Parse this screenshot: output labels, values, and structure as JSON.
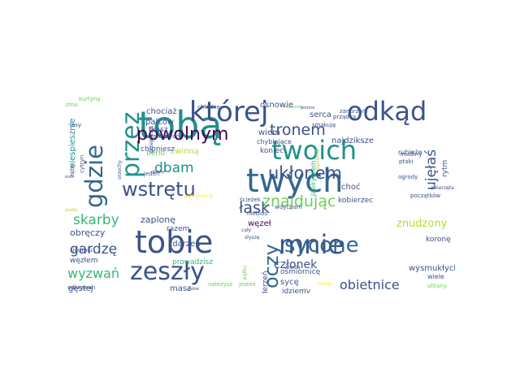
{
  "palette": {
    "background": "#ffffff",
    "dark_purple": "#440154",
    "indigo": "#3b528b",
    "blue": "#31688e",
    "teal": "#21918c",
    "green": "#35b779",
    "light_green": "#6ece58",
    "lime": "#b5de2b",
    "yellow": "#fde725"
  },
  "words": [
    {
      "text": "tobą",
      "c": "#21918c"
    },
    {
      "text": "twych",
      "c": "#31688e"
    },
    {
      "text": "tobie",
      "c": "#3b528b"
    },
    {
      "text": "której",
      "c": "#3b528b"
    },
    {
      "text": "odkąd",
      "c": "#3b528b"
    },
    {
      "text": "twoich",
      "c": "#21918c"
    },
    {
      "text": "gdzie",
      "c": "#31688e"
    },
    {
      "text": "przez",
      "c": "#21918c"
    },
    {
      "text": "mnie",
      "c": "#3b528b"
    },
    {
      "text": "zeszły",
      "c": "#3b528b"
    },
    {
      "text": "wstrętu",
      "c": "#3b528b"
    },
    {
      "text": "sycone",
      "c": "#31688e"
    },
    {
      "text": "powolnym",
      "c": "#440154"
    },
    {
      "text": "ukłonem",
      "c": "#3b528b"
    },
    {
      "text": "tronem",
      "c": "#3b528b"
    },
    {
      "text": "oczy",
      "c": "#31688e"
    },
    {
      "text": "znajdując",
      "c": "#6ece58"
    },
    {
      "text": "skarby",
      "c": "#35b779"
    },
    {
      "text": "łask",
      "c": "#3b528b"
    },
    {
      "text": "dbam",
      "c": "#21918c"
    },
    {
      "text": "ujęłaś",
      "c": "#3b528b"
    },
    {
      "text": "gardzę",
      "c": "#3b528b"
    },
    {
      "text": "wyzwań",
      "c": "#35b779"
    },
    {
      "text": "obietnice",
      "c": "#3b528b"
    },
    {
      "text": "członek",
      "c": "#3b528b"
    },
    {
      "text": "znudzony",
      "c": "#b5de2b"
    },
    {
      "text": "zaplonę",
      "c": "#3b528b"
    },
    {
      "text": "obręczy",
      "c": "#3b528b"
    },
    {
      "text": "węzłem",
      "c": "#3b528b"
    },
    {
      "text": "siedmiu",
      "c": "#3b528b"
    },
    {
      "text": "gęstej",
      "c": "#3b528b"
    },
    {
      "text": "masz",
      "c": "#3b528b"
    },
    {
      "text": "prowadzisz",
      "c": "#35b779"
    },
    {
      "text": "zdarzeń",
      "c": "#3b528b"
    },
    {
      "text": "razem",
      "c": "#3b528b"
    },
    {
      "text": "węzeł",
      "c": "#440154"
    },
    {
      "text": "koronę",
      "c": "#3b528b"
    },
    {
      "text": "wysmukłych",
      "c": "#3b528b"
    },
    {
      "text": "ośmiornicę",
      "c": "#3b528b"
    },
    {
      "text": "sycę",
      "c": "#3b528b"
    },
    {
      "text": "wiele",
      "c": "#3b528b"
    },
    {
      "text": "utkany",
      "c": "#6ece58"
    },
    {
      "text": "idziemy",
      "c": "#3b528b"
    },
    {
      "text": "uderzeń",
      "c": "#3b528b"
    },
    {
      "text": "wątku",
      "c": "#6ece58"
    },
    {
      "text": "jesteś",
      "c": "#6ece58"
    },
    {
      "text": "należysz",
      "c": "#6ece58"
    },
    {
      "text": "odkrywan",
      "c": "#3b528b"
    },
    {
      "text": "ścieżek",
      "c": "#3b528b"
    },
    {
      "text": "wdycham",
      "c": "#3b528b"
    },
    {
      "text": "niebios",
      "c": "#3b528b"
    },
    {
      "text": "osnowie",
      "c": "#3b528b"
    },
    {
      "text": "wiem",
      "c": "#3b528b"
    },
    {
      "text": "chybiające",
      "c": "#3b528b"
    },
    {
      "text": "koniec",
      "c": "#3b528b"
    },
    {
      "text": "spione",
      "c": "#b5de2b"
    },
    {
      "text": "serca",
      "c": "#3b528b"
    },
    {
      "text": "smakuję",
      "c": "#3b528b"
    },
    {
      "text": "najdziksze",
      "c": "#3b528b"
    },
    {
      "text": "labiryntem",
      "c": "#35b779"
    },
    {
      "text": "choć",
      "c": "#3b528b"
    },
    {
      "text": "kobierzec",
      "c": "#3b528b"
    },
    {
      "text": "rubieże",
      "c": "#3b528b"
    },
    {
      "text": "ptaki",
      "c": "#3b528b"
    },
    {
      "text": "ogrody",
      "c": "#3b528b"
    },
    {
      "text": "rytm",
      "c": "#3b528b"
    },
    {
      "text": "zwierzęta",
      "c": "#3b528b"
    },
    {
      "text": "początków",
      "c": "#3b528b"
    },
    {
      "text": "muśliny",
      "c": "#3b528b"
    },
    {
      "text": "równiny",
      "c": "#3b528b"
    },
    {
      "text": "prządką",
      "c": "#3b528b"
    },
    {
      "text": "zanurzam",
      "c": "#3b528b"
    },
    {
      "text": "chłodne",
      "c": "#3b528b"
    },
    {
      "text": "mchrowe",
      "c": "#6ece58"
    },
    {
      "text": "pomne",
      "c": "#3b528b"
    },
    {
      "text": "chociaż",
      "c": "#3b528b"
    },
    {
      "text": "palców",
      "c": "#3b528b"
    },
    {
      "text": "tkasz",
      "c": "#3b528b"
    },
    {
      "text": "zamierzeń",
      "c": "#3b528b"
    },
    {
      "text": "chłoniesz",
      "c": "#3b528b"
    },
    {
      "text": "berło",
      "c": "#6ece58"
    },
    {
      "text": "zwinną",
      "c": "#b5de2b"
    },
    {
      "text": "obawy",
      "c": "#3b528b"
    },
    {
      "text": "jeden",
      "c": "#3b528b"
    },
    {
      "text": "przejrzyste",
      "c": "#3b528b"
    },
    {
      "text": "orzechy",
      "c": "#3b528b"
    },
    {
      "text": "niespiesznie",
      "c": "#21918c"
    },
    {
      "text": "cytryn",
      "c": "#3b528b"
    },
    {
      "text": "zęby",
      "c": "#3b528b"
    },
    {
      "text": "lasy",
      "c": "#3b528b"
    },
    {
      "text": "kurtyny",
      "c": "#6ece58"
    },
    {
      "text": "pizma",
      "c": "#6ece58"
    },
    {
      "text": "gładko",
      "c": "#b5de2b"
    },
    {
      "text": "bosu",
      "c": "#3b528b"
    },
    {
      "text": "ciebie",
      "c": "#3b528b"
    },
    {
      "text": "wiecznością",
      "c": "#fde725"
    },
    {
      "text": "cały",
      "c": "#3b528b"
    },
    {
      "text": "słyszę",
      "c": "#3b528b"
    },
    {
      "text": "wierzę",
      "c": "#3b528b"
    },
    {
      "text": "miody",
      "c": "#fde725"
    }
  ]
}
